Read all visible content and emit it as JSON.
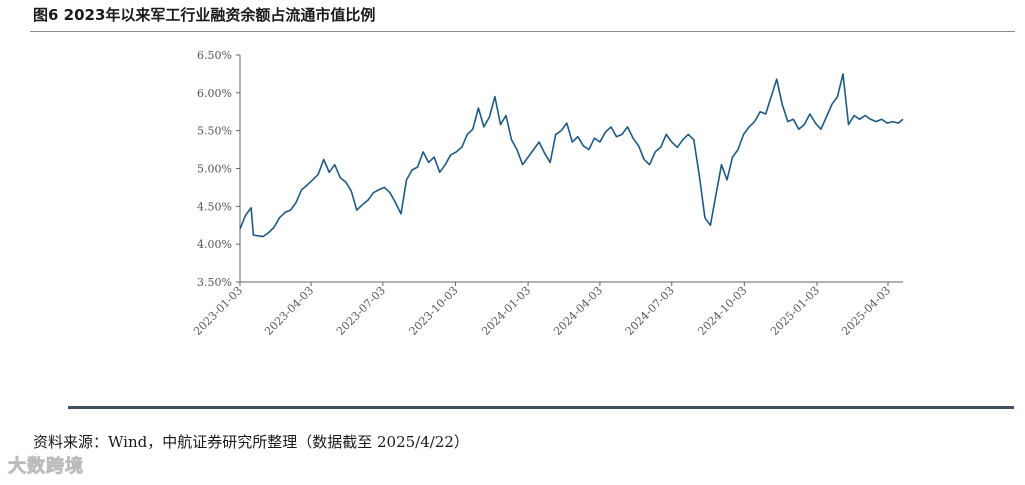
{
  "title": "图6  2023年以来军工行业融资余额占流通市值比例",
  "source": "资料来源：Wind，中航证券研究所整理（数据截至 2025/4/22）",
  "watermark": "大数跨境",
  "colors": {
    "line": "#1f5a84",
    "axis": "#666666",
    "rule": "#3f5062"
  },
  "chart_data": {
    "type": "line",
    "y_format": "percent",
    "ylim": [
      3.5,
      6.5
    ],
    "y_ticks": [
      {
        "value": 3.5,
        "label": "3.50%"
      },
      {
        "value": 4.0,
        "label": "4.00%"
      },
      {
        "value": 4.5,
        "label": "4.50%"
      },
      {
        "value": 5.0,
        "label": "5.00%"
      },
      {
        "value": 5.5,
        "label": "5.50%"
      },
      {
        "value": 6.0,
        "label": "6.00%"
      },
      {
        "value": 6.5,
        "label": "6.50%"
      }
    ],
    "x_range": [
      "2023-01-03",
      "2025-04-22"
    ],
    "x_ticks": [
      "2023-01-03",
      "2023-04-03",
      "2023-07-03",
      "2023-10-03",
      "2024-01-03",
      "2024-04-03",
      "2024-07-03",
      "2024-10-03",
      "2025-01-03",
      "2025-04-03"
    ],
    "grid": false,
    "series": [
      {
        "x": [
          "2023-01-03",
          "2023-01-10",
          "2023-01-17",
          "2023-01-20",
          "2023-02-01",
          "2023-02-08",
          "2023-02-15",
          "2023-02-22",
          "2023-03-01",
          "2023-03-08",
          "2023-03-15",
          "2023-03-22",
          "2023-03-29",
          "2023-04-05",
          "2023-04-12",
          "2023-04-19",
          "2023-04-26",
          "2023-05-03",
          "2023-05-10",
          "2023-05-17",
          "2023-05-24",
          "2023-05-31",
          "2023-06-07",
          "2023-06-14",
          "2023-06-21",
          "2023-06-28",
          "2023-07-05",
          "2023-07-12",
          "2023-07-19",
          "2023-07-26",
          "2023-08-02",
          "2023-08-09",
          "2023-08-16",
          "2023-08-23",
          "2023-08-30",
          "2023-09-06",
          "2023-09-13",
          "2023-09-20",
          "2023-09-27",
          "2023-10-04",
          "2023-10-11",
          "2023-10-18",
          "2023-10-25",
          "2023-11-01",
          "2023-11-08",
          "2023-11-15",
          "2023-11-22",
          "2023-11-29",
          "2023-12-06",
          "2023-12-13",
          "2023-12-20",
          "2023-12-27",
          "2024-01-03",
          "2024-01-10",
          "2024-01-17",
          "2024-01-24",
          "2024-01-31",
          "2024-02-07",
          "2024-02-14",
          "2024-02-21",
          "2024-02-28",
          "2024-03-06",
          "2024-03-13",
          "2024-03-20",
          "2024-03-27",
          "2024-04-03",
          "2024-04-10",
          "2024-04-17",
          "2024-04-24",
          "2024-05-01",
          "2024-05-08",
          "2024-05-15",
          "2024-05-22",
          "2024-05-29",
          "2024-06-05",
          "2024-06-12",
          "2024-06-19",
          "2024-06-26",
          "2024-07-03",
          "2024-07-10",
          "2024-07-17",
          "2024-07-24",
          "2024-07-31",
          "2024-08-07",
          "2024-08-14",
          "2024-08-21",
          "2024-08-28",
          "2024-09-04",
          "2024-09-11",
          "2024-09-18",
          "2024-09-25",
          "2024-10-02",
          "2024-10-09",
          "2024-10-16",
          "2024-10-23",
          "2024-10-30",
          "2024-11-06",
          "2024-11-13",
          "2024-11-20",
          "2024-11-27",
          "2024-12-04",
          "2024-12-11",
          "2024-12-18",
          "2024-12-25",
          "2025-01-01",
          "2025-01-08",
          "2025-01-15",
          "2025-01-22",
          "2025-01-29",
          "2025-02-05",
          "2025-02-12",
          "2025-02-19",
          "2025-02-26",
          "2025-03-05",
          "2025-03-12",
          "2025-03-19",
          "2025-03-26",
          "2025-04-02",
          "2025-04-09",
          "2025-04-16",
          "2025-04-22"
        ],
        "values": [
          4.2,
          4.38,
          4.48,
          4.12,
          4.1,
          4.15,
          4.22,
          4.35,
          4.42,
          4.45,
          4.55,
          4.72,
          4.78,
          4.85,
          4.92,
          5.12,
          4.95,
          5.05,
          4.88,
          4.82,
          4.7,
          4.45,
          4.52,
          4.58,
          4.68,
          4.72,
          4.75,
          4.68,
          4.55,
          4.4,
          4.85,
          4.98,
          5.02,
          5.22,
          5.08,
          5.15,
          4.95,
          5.05,
          5.18,
          5.22,
          5.28,
          5.45,
          5.52,
          5.8,
          5.55,
          5.68,
          5.95,
          5.58,
          5.7,
          5.38,
          5.25,
          5.05,
          5.15,
          5.25,
          5.35,
          5.2,
          5.08,
          5.45,
          5.5,
          5.6,
          5.35,
          5.42,
          5.3,
          5.25,
          5.4,
          5.35,
          5.48,
          5.55,
          5.42,
          5.45,
          5.55,
          5.4,
          5.3,
          5.12,
          5.05,
          5.22,
          5.28,
          5.45,
          5.35,
          5.28,
          5.38,
          5.45,
          5.38,
          4.9,
          4.35,
          4.25,
          4.65,
          5.05,
          4.85,
          5.15,
          5.25,
          5.45,
          5.55,
          5.62,
          5.75,
          5.72,
          5.95,
          6.18,
          5.85,
          5.62,
          5.65,
          5.52,
          5.58,
          5.72,
          5.6,
          5.52,
          5.68,
          5.85,
          5.95,
          6.25,
          5.58,
          5.7,
          5.65,
          5.7,
          5.65,
          5.62,
          5.65,
          5.6,
          5.62,
          5.6,
          5.65
        ]
      }
    ]
  }
}
